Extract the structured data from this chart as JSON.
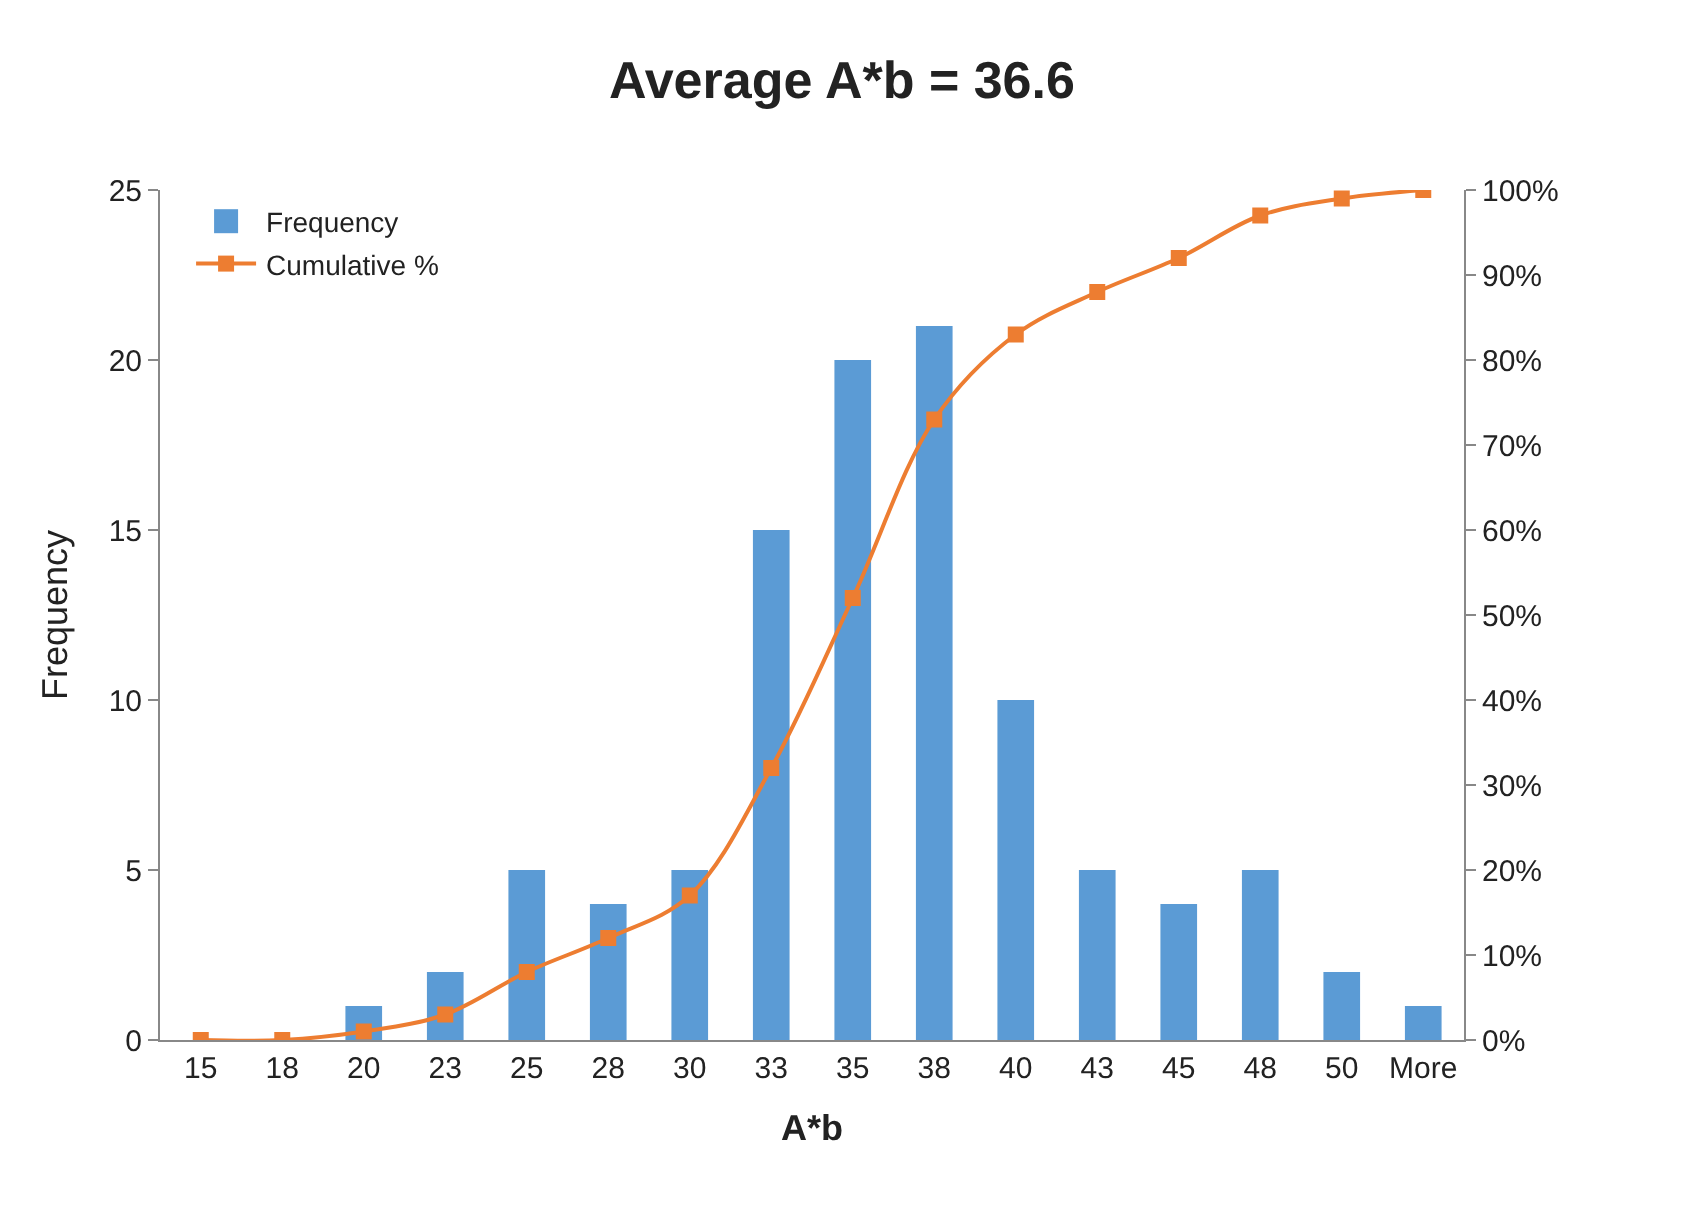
{
  "chart_data": {
    "type": "bar",
    "title": "Average A*b = 36.6",
    "xlabel": "A*b",
    "ylabel": "Frequency",
    "categories": [
      "15",
      "18",
      "20",
      "23",
      "25",
      "28",
      "30",
      "33",
      "35",
      "38",
      "40",
      "43",
      "45",
      "48",
      "50",
      "More"
    ],
    "series": [
      {
        "name": "Frequency",
        "color": "#5b9bd5",
        "values": [
          0,
          0,
          1,
          2,
          5,
          4,
          5,
          15,
          20,
          21,
          10,
          5,
          4,
          5,
          2,
          1
        ]
      },
      {
        "name": "Cumulative %",
        "type": "line",
        "axis": "y2",
        "color": "#ed7d31",
        "marker": "square",
        "values": [
          0,
          0,
          1,
          3,
          8,
          12,
          17,
          32,
          52,
          73,
          83,
          88,
          92,
          97,
          99,
          100
        ]
      }
    ],
    "ylim": [
      0,
      25
    ],
    "yticks": [
      0,
      5,
      10,
      15,
      20,
      25
    ],
    "y2lim": [
      0,
      100
    ],
    "y2ticks": [
      {
        "value": 0,
        "label": "0%"
      },
      {
        "value": 10,
        "label": "10%"
      },
      {
        "value": 20,
        "label": "20%"
      },
      {
        "value": 30,
        "label": "30%"
      },
      {
        "value": 40,
        "label": "40%"
      },
      {
        "value": 50,
        "label": "50%"
      },
      {
        "value": 60,
        "label": "60%"
      },
      {
        "value": 70,
        "label": "70%"
      },
      {
        "value": 80,
        "label": "80%"
      },
      {
        "value": 90,
        "label": "90%"
      },
      {
        "value": 100,
        "label": "100%"
      }
    ],
    "legend": "top left"
  }
}
